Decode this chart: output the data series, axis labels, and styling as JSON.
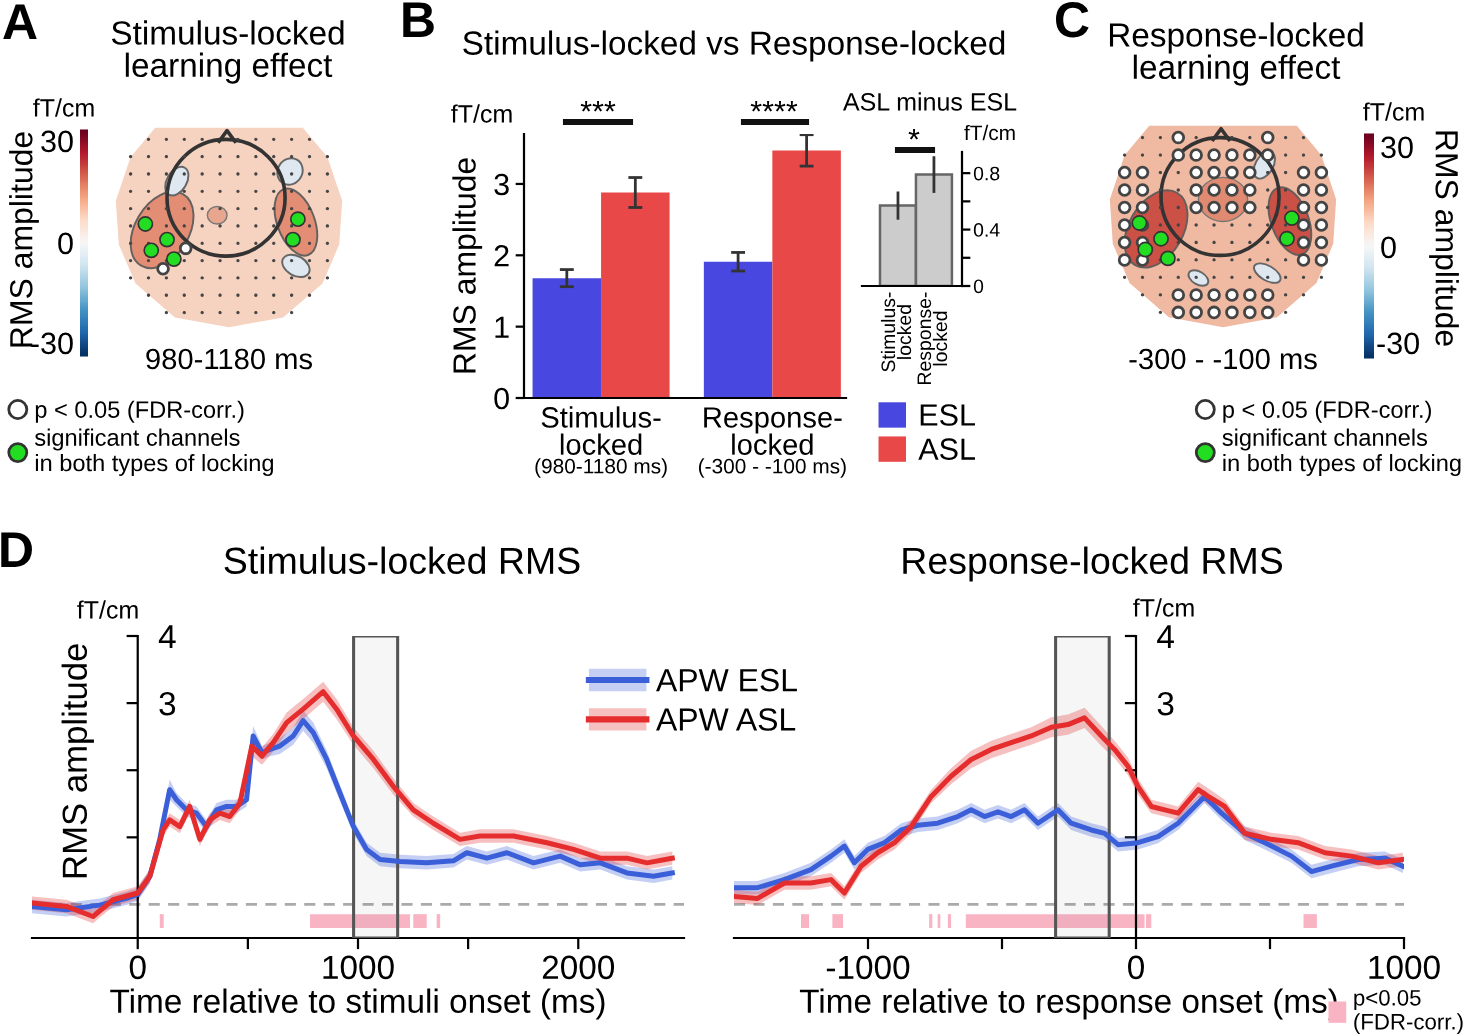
{
  "chart_data": [
    {
      "type": "other",
      "title": "Stimulus-locked\nlearning effect",
      "xlabel": "980-1180 ms",
      "annotations": [
        "A",
        "fT/cm",
        "30",
        "0",
        "-30",
        "RMS amplitude"
      ],
      "series": [
        {
          "name": "p < 0.05 (FDR-corr.)",
          "color": "#ffffff"
        },
        {
          "name": "significant channels\nin both types of locking",
          "color": "#22dd22"
        }
      ],
      "legend": "bottom left"
    },
    {
      "type": "bar",
      "title": "Stimulus-locked vs Response-locked",
      "categories": [
        "Stimulus-\nlocked\n(980-1180 ms)",
        "Response-\nlocked\n(-300 - -100 ms)"
      ],
      "ylabel": "RMS amplitude",
      "ylim": [
        0,
        3.7
      ],
      "yticks": [
        0,
        1,
        2,
        3
      ],
      "series": [
        {
          "name": "ESL",
          "color": "#4848e0",
          "values": [
            1.68,
            1.91
          ],
          "errors": [
            0.12,
            0.13
          ]
        },
        {
          "name": "ASL",
          "color": "#e84848",
          "values": [
            2.88,
            3.47
          ],
          "errors": [
            0.21,
            0.22
          ]
        }
      ],
      "annotations": [
        "B",
        "fT/cm",
        "***",
        "****"
      ],
      "legend": "bottom right"
    },
    {
      "type": "bar",
      "title": "ASL minus ESL",
      "categories": [
        "Stimulus-\nlocked",
        "Response-\nlocked"
      ],
      "ylabel": "fT/cm",
      "ylim": [
        0,
        0.95
      ],
      "yticks": [
        0,
        {
          "value": 0.2,
          "label": null
        },
        0.4,
        {
          "value": 0.6,
          "label": null
        },
        0.8
      ],
      "values": [
        0.57,
        0.79
      ],
      "errors": [
        0.1,
        0.13
      ],
      "color": "#cccccc",
      "annotations": [
        "*"
      ]
    },
    {
      "type": "other",
      "title": "Response-locked\nlearning effect",
      "xlabel": "-300 - -100 ms",
      "annotations": [
        "C",
        "fT/cm",
        "30",
        "0",
        "-30",
        "RMS amplitude"
      ],
      "series": [
        {
          "name": "p < 0.05 (FDR-corr.)",
          "color": "#ffffff"
        },
        {
          "name": "significant channels\nin both types of locking",
          "color": "#22dd22"
        }
      ],
      "legend": "bottom right"
    },
    {
      "type": "line",
      "title": "Stimulus-locked RMS",
      "xlabel": "Time relative to stimuli onset (ms)",
      "ylabel": "RMS amplitude",
      "xlim": [
        -480,
        2480
      ],
      "xticks": [
        0,
        {
          "value": 500,
          "label": null
        },
        1000,
        {
          "value": 1500,
          "label": null
        },
        2000
      ],
      "ylim": [
        -0.5,
        4
      ],
      "yticks": [
        {
          "value": 1,
          "label": null
        },
        {
          "value": 2,
          "label": null
        },
        3,
        4
      ],
      "series": [
        {
          "name": "APW ESL",
          "color": "#3a5fd8",
          "x": [
            -480,
            -324,
            -173,
            -52,
            0,
            55,
            100,
            145,
            176,
            221,
            267,
            312,
            358,
            403,
            448,
            494,
            524,
            564,
            600,
            645,
            706,
            751,
            797,
            858,
            918,
            979,
            1039,
            1100,
            1191,
            1312,
            1433,
            1494,
            1585,
            1676,
            1797,
            1918,
            2009,
            2100,
            2221,
            2342,
            2427
          ],
          "values": [
            -0.03,
            -0.08,
            -0.01,
            0.09,
            0.15,
            0.42,
            0.97,
            1.71,
            1.56,
            1.41,
            1.36,
            1.16,
            1.41,
            1.46,
            1.46,
            1.56,
            2.51,
            2.26,
            2.31,
            2.36,
            2.51,
            2.74,
            2.56,
            2.16,
            1.66,
            1.16,
            0.82,
            0.67,
            0.64,
            0.62,
            0.65,
            0.77,
            0.69,
            0.77,
            0.62,
            0.72,
            0.59,
            0.62,
            0.47,
            0.42,
            0.47
          ],
          "lower": [
            -0.13,
            -0.18,
            -0.11,
            -0.01,
            0.05,
            0.32,
            0.87,
            1.56,
            1.46,
            1.31,
            1.26,
            1.06,
            1.31,
            1.36,
            1.36,
            1.46,
            2.36,
            2.16,
            2.21,
            2.24,
            2.38,
            2.59,
            2.41,
            2.03,
            1.54,
            1.06,
            0.72,
            0.57,
            0.54,
            0.52,
            0.55,
            0.67,
            0.59,
            0.67,
            0.52,
            0.62,
            0.49,
            0.52,
            0.37,
            0.32,
            0.37
          ],
          "upper": [
            0.07,
            0.02,
            0.09,
            0.19,
            0.25,
            0.52,
            1.07,
            1.86,
            1.66,
            1.51,
            1.46,
            1.26,
            1.51,
            1.56,
            1.56,
            1.66,
            2.66,
            2.36,
            2.41,
            2.48,
            2.64,
            2.89,
            2.71,
            2.29,
            1.78,
            1.26,
            0.92,
            0.77,
            0.74,
            0.72,
            0.75,
            0.87,
            0.79,
            0.87,
            0.72,
            0.82,
            0.69,
            0.72,
            0.57,
            0.52,
            0.57
          ]
        },
        {
          "name": "APW ASL",
          "color": "#e52d2d",
          "x": [
            -480,
            -324,
            -203,
            -112,
            0,
            55,
            115,
            145,
            191,
            236,
            282,
            327,
            373,
            418,
            464,
            518,
            564,
            615,
            676,
            751,
            842,
            903,
            979,
            1070,
            1160,
            1251,
            1342,
            1463,
            1554,
            1706,
            1858,
            1979,
            2100,
            2221,
            2312,
            2427
          ],
          "values": [
            0.02,
            -0.03,
            -0.18,
            0.07,
            0.17,
            0.42,
            1.11,
            1.26,
            1.16,
            1.46,
            0.97,
            1.26,
            1.36,
            1.31,
            1.51,
            2.36,
            2.21,
            2.41,
            2.71,
            2.91,
            3.17,
            2.91,
            2.51,
            2.16,
            1.76,
            1.41,
            1.21,
            0.97,
            1.02,
            1.02,
            0.92,
            0.82,
            0.69,
            0.69,
            0.62,
            0.69
          ],
          "lower": [
            -0.08,
            -0.13,
            -0.28,
            -0.03,
            0.07,
            0.32,
            1.01,
            1.16,
            1.06,
            1.36,
            0.87,
            1.16,
            1.26,
            1.21,
            1.41,
            2.21,
            2.08,
            2.28,
            2.56,
            2.76,
            3.02,
            2.76,
            2.38,
            2.03,
            1.64,
            1.31,
            1.11,
            0.87,
            0.92,
            0.92,
            0.82,
            0.72,
            0.59,
            0.59,
            0.52,
            0.59
          ],
          "upper": [
            0.12,
            0.07,
            -0.08,
            0.17,
            0.27,
            0.52,
            1.21,
            1.36,
            1.26,
            1.56,
            1.07,
            1.36,
            1.46,
            1.41,
            1.61,
            2.51,
            2.34,
            2.54,
            2.86,
            3.06,
            3.32,
            3.06,
            2.64,
            2.29,
            1.88,
            1.51,
            1.31,
            1.07,
            1.12,
            1.12,
            1.02,
            0.92,
            0.79,
            0.79,
            0.72,
            0.79
          ]
        }
      ],
      "ref_lines": [
        {
          "axis": "y",
          "value": 0,
          "color": "#aaaaaa",
          "line_style": "dashed"
        }
      ],
      "bands": [
        {
          "axis": "x",
          "from": 980,
          "to": 1180,
          "color": "#555555"
        },
        {
          "axis": "x",
          "from": 100,
          "to": 118,
          "color": "#f9b4c4"
        },
        {
          "axis": "x",
          "from": 782,
          "to": 1236,
          "color": "#f9b4c4"
        },
        {
          "axis": "x",
          "from": 1251,
          "to": 1312,
          "color": "#f9b4c4"
        },
        {
          "axis": "x",
          "from": 1357,
          "to": 1373,
          "color": "#f9b4c4"
        }
      ],
      "annotations": [
        "D",
        "fT/cm"
      ],
      "legend": "top right"
    },
    {
      "type": "line",
      "title": "Response-locked RMS",
      "xlabel": "Time relative to response onset (ms)",
      "xlim": [
        -1500,
        1000
      ],
      "xticks": [
        -1000,
        {
          "value": -500,
          "label": null
        },
        0,
        {
          "value": 500,
          "label": null
        },
        1000
      ],
      "ylim": [
        -0.5,
        4
      ],
      "yticks": [
        {
          "value": 1,
          "label": null
        },
        {
          "value": 2,
          "label": null
        },
        3,
        4
      ],
      "series": [
        {
          "color": "#3a5fd8",
          "x": [
            -1500,
            -1412,
            -1312,
            -1213,
            -1138,
            -1088,
            -1051,
            -1001,
            -939,
            -876,
            -814,
            -740,
            -665,
            -615,
            -565,
            -515,
            -466,
            -416,
            -366,
            -291,
            -242,
            -167,
            -117,
            -67,
            7,
            82,
            157,
            219,
            256,
            319,
            406,
            481,
            580,
            655,
            730,
            829,
            929,
            996
          ],
          "values": [
            0.25,
            0.25,
            0.37,
            0.52,
            0.72,
            0.87,
            0.62,
            0.82,
            0.92,
            1.11,
            1.18,
            1.21,
            1.31,
            1.41,
            1.31,
            1.38,
            1.31,
            1.41,
            1.21,
            1.41,
            1.21,
            1.11,
            1.06,
            0.89,
            0.92,
            1.01,
            1.21,
            1.46,
            1.61,
            1.36,
            1.06,
            0.92,
            0.72,
            0.49,
            0.57,
            0.67,
            0.69,
            0.57
          ],
          "lower": [
            0.15,
            0.15,
            0.27,
            0.42,
            0.62,
            0.77,
            0.52,
            0.72,
            0.82,
            1.01,
            1.08,
            1.11,
            1.21,
            1.31,
            1.21,
            1.28,
            1.21,
            1.31,
            1.11,
            1.31,
            1.11,
            1.01,
            0.96,
            0.79,
            0.82,
            0.91,
            1.11,
            1.36,
            1.51,
            1.26,
            0.96,
            0.82,
            0.62,
            0.39,
            0.47,
            0.57,
            0.59,
            0.47
          ],
          "upper": [
            0.35,
            0.35,
            0.47,
            0.62,
            0.82,
            0.97,
            0.72,
            0.92,
            1.02,
            1.21,
            1.28,
            1.31,
            1.41,
            1.51,
            1.41,
            1.48,
            1.41,
            1.51,
            1.31,
            1.51,
            1.31,
            1.21,
            1.16,
            0.99,
            1.02,
            1.11,
            1.31,
            1.56,
            1.71,
            1.46,
            1.16,
            1.02,
            0.82,
            0.59,
            0.67,
            0.77,
            0.79,
            0.67
          ]
        },
        {
          "color": "#e52d2d",
          "x": [
            -1500,
            -1412,
            -1312,
            -1213,
            -1138,
            -1088,
            -1026,
            -964,
            -901,
            -839,
            -764,
            -690,
            -615,
            -540,
            -466,
            -391,
            -316,
            -254,
            -192,
            -129,
            -80,
            -30,
            7,
            57,
            107,
            157,
            232,
            269,
            331,
            406,
            505,
            605,
            705,
            804,
            904,
            996
          ],
          "values": [
            0.12,
            0.09,
            0.32,
            0.32,
            0.37,
            0.17,
            0.57,
            0.77,
            0.92,
            1.16,
            1.61,
            1.91,
            2.16,
            2.31,
            2.41,
            2.51,
            2.64,
            2.68,
            2.78,
            2.51,
            2.31,
            2.06,
            1.76,
            1.46,
            1.41,
            1.36,
            1.71,
            1.61,
            1.46,
            1.06,
            0.97,
            0.92,
            0.77,
            0.72,
            0.62,
            0.67
          ],
          "lower": [
            0.02,
            -0.01,
            0.22,
            0.22,
            0.27,
            0.07,
            0.47,
            0.67,
            0.82,
            1.06,
            1.51,
            1.79,
            2.03,
            2.18,
            2.28,
            2.38,
            2.49,
            2.53,
            2.63,
            2.36,
            2.18,
            1.93,
            1.64,
            1.36,
            1.31,
            1.26,
            1.59,
            1.49,
            1.36,
            0.96,
            0.87,
            0.82,
            0.67,
            0.62,
            0.52,
            0.57
          ],
          "upper": [
            0.22,
            0.19,
            0.42,
            0.42,
            0.47,
            0.27,
            0.67,
            0.87,
            1.02,
            1.26,
            1.71,
            2.03,
            2.29,
            2.44,
            2.54,
            2.64,
            2.79,
            2.83,
            2.93,
            2.66,
            2.44,
            2.19,
            1.88,
            1.56,
            1.51,
            1.46,
            1.83,
            1.73,
            1.56,
            1.16,
            1.07,
            1.02,
            0.87,
            0.82,
            0.72,
            0.77
          ]
        }
      ],
      "ref_lines": [
        {
          "axis": "y",
          "value": 0,
          "color": "#aaaaaa",
          "line_style": "dashed"
        }
      ],
      "bands": [
        {
          "axis": "x",
          "from": -300,
          "to": -100,
          "color": "#555555"
        },
        {
          "axis": "x",
          "from": -1250,
          "to": -1220,
          "color": "#f9b4c4",
          "label": "p<0.05\n(FDR-corr.)"
        },
        {
          "axis": "x",
          "from": -1133,
          "to": -1093,
          "color": "#f9b4c4"
        },
        {
          "axis": "x",
          "from": -772,
          "to": -760,
          "color": "#f9b4c4"
        },
        {
          "axis": "x",
          "from": -740,
          "to": -730,
          "color": "#f9b4c4"
        },
        {
          "axis": "x",
          "from": -702,
          "to": -690,
          "color": "#f9b4c4"
        },
        {
          "axis": "x",
          "from": -635,
          "to": 32,
          "color": "#f9b4c4"
        },
        {
          "axis": "x",
          "from": 37,
          "to": 57,
          "color": "#f9b4c4"
        },
        {
          "axis": "x",
          "from": 625,
          "to": 675,
          "color": "#f9b4c4"
        }
      ],
      "annotations": [
        "fT/cm"
      ],
      "legend": "bottom right"
    }
  ]
}
